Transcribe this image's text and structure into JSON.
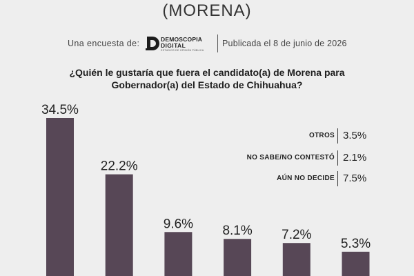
{
  "header": {
    "title": "(MORENA)",
    "survey_label": "Una encuesta de:",
    "logo": {
      "line1": "DEMOSCOPIA",
      "line2": "DIGITAL",
      "line3": "ESTUDIOS DE OPINIÓN PÚBLICA"
    },
    "published": "Publicada el 8 de junio de 2026"
  },
  "question": {
    "line1": "¿Quién le gustaría que fuera el candidato(a) de Morena para",
    "line2": "Gobernador(a) del Estado de Chihuahua?"
  },
  "legend": [
    {
      "label": "OTROS",
      "value": "3.5%"
    },
    {
      "label": "NO SABE/NO CONTESTÓ",
      "value": "2.1%"
    },
    {
      "label": "AÚN NO DECIDE",
      "value": "7.5%"
    }
  ],
  "colors": {
    "bar": "#574756",
    "background": "#eeeeee",
    "text": "#222222"
  },
  "chart_data": {
    "type": "bar",
    "categories": [
      "",
      "",
      "",
      "",
      "",
      ""
    ],
    "values": [
      34.5,
      22.2,
      9.6,
      8.1,
      7.2,
      5.3
    ],
    "value_labels": [
      "34.5%",
      "22.2%",
      "9.6%",
      "8.1%",
      "7.2%",
      "5.3%"
    ],
    "ylim": [
      0,
      34.5
    ],
    "grid": false
  }
}
